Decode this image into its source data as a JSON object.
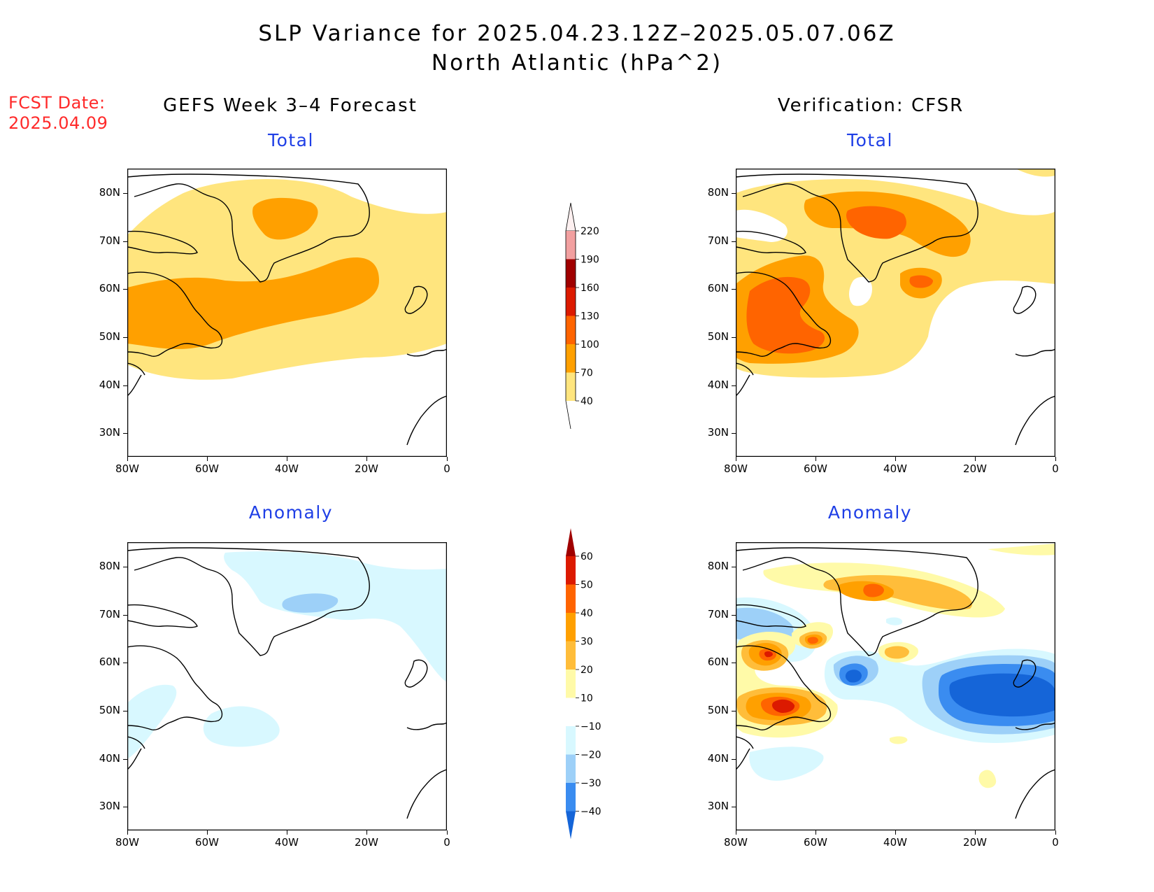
{
  "title_line1": "SLP Variance for 2025.04.23.12Z–2025.05.07.06Z",
  "title_line2": "North Atlantic (hPa^2)",
  "fcst_label_line1": "FCST Date:",
  "fcst_label_line2": "2025.04.09",
  "left_column_title": "GEFS Week 3–4 Forecast",
  "right_column_title": "Verification: CFSR",
  "panels": [
    {
      "title": "Total"
    },
    {
      "title": "Total"
    },
    {
      "title": "Anomaly"
    },
    {
      "title": "Anomaly"
    }
  ],
  "lat_labels": [
    "80N",
    "70N",
    "60N",
    "50N",
    "40N",
    "30N"
  ],
  "lon_labels": [
    "80W",
    "60W",
    "40W",
    "20W",
    "0"
  ],
  "colorbar_total": {
    "levels": [
      "220",
      "190",
      "160",
      "130",
      "100",
      "70",
      "40"
    ],
    "colors": [
      "#fdf0f0",
      "#f2a0a0",
      "#a00000",
      "#dc1a00",
      "#ff6400",
      "#ffa000",
      "#ffe57e"
    ]
  },
  "colorbar_anomaly": {
    "levels": [
      "60",
      "50",
      "40",
      "30",
      "20",
      "10",
      "−10",
      "−20",
      "−30",
      "−40"
    ],
    "colors": [
      "#a00000",
      "#dc1a00",
      "#ff6400",
      "#ffa000",
      "#ffbd3a",
      "#fffaa8",
      "#ffffff",
      "#d8f8ff",
      "#9dd0f8",
      "#3a8cf0",
      "#1565d8"
    ]
  },
  "colors": {
    "total_40": "#ffe57e",
    "total_70": "#ffa000",
    "total_100": "#ff6400",
    "total_130": "#dc1a00",
    "anom_10": "#fffaa8",
    "anom_20": "#ffbd3a",
    "anom_30": "#ffa000",
    "anom_40": "#ff6400",
    "anom_50": "#dc1a00",
    "anom_m10": "#d8f8ff",
    "anom_m20": "#9dd0f8",
    "anom_m30": "#3a8cf0",
    "anom_m40": "#1565d8"
  }
}
